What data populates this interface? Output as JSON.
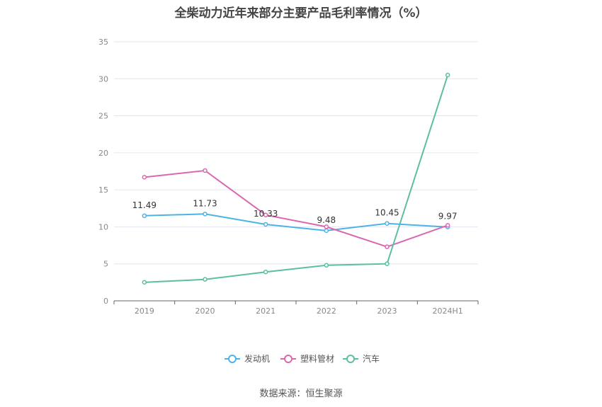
{
  "chart_data": {
    "type": "line",
    "title": "全柴动力近年来部分主要产品毛利率情况（%）",
    "categories": [
      "2019",
      "2020",
      "2021",
      "2022",
      "2023",
      "2024H1"
    ],
    "ylim": [
      0,
      35
    ],
    "yticks": [
      0,
      5,
      10,
      15,
      20,
      25,
      30,
      35
    ],
    "grid": true,
    "legend_position": "bottom",
    "series": [
      {
        "name": "发动机",
        "color": "#4db3e6",
        "values": [
          11.49,
          11.73,
          10.33,
          9.48,
          10.45,
          9.97
        ],
        "labels": [
          "11.49",
          "11.73",
          "10.33",
          "9.48",
          "10.45",
          "9.97"
        ]
      },
      {
        "name": "塑料管材",
        "color": "#d968b0",
        "values": [
          16.7,
          17.6,
          11.6,
          10.0,
          7.3,
          10.2
        ]
      },
      {
        "name": "汽车",
        "color": "#5dbea3",
        "values": [
          2.5,
          2.9,
          3.9,
          4.8,
          5.0,
          30.5
        ]
      }
    ]
  },
  "source": "数据来源：恒生聚源"
}
